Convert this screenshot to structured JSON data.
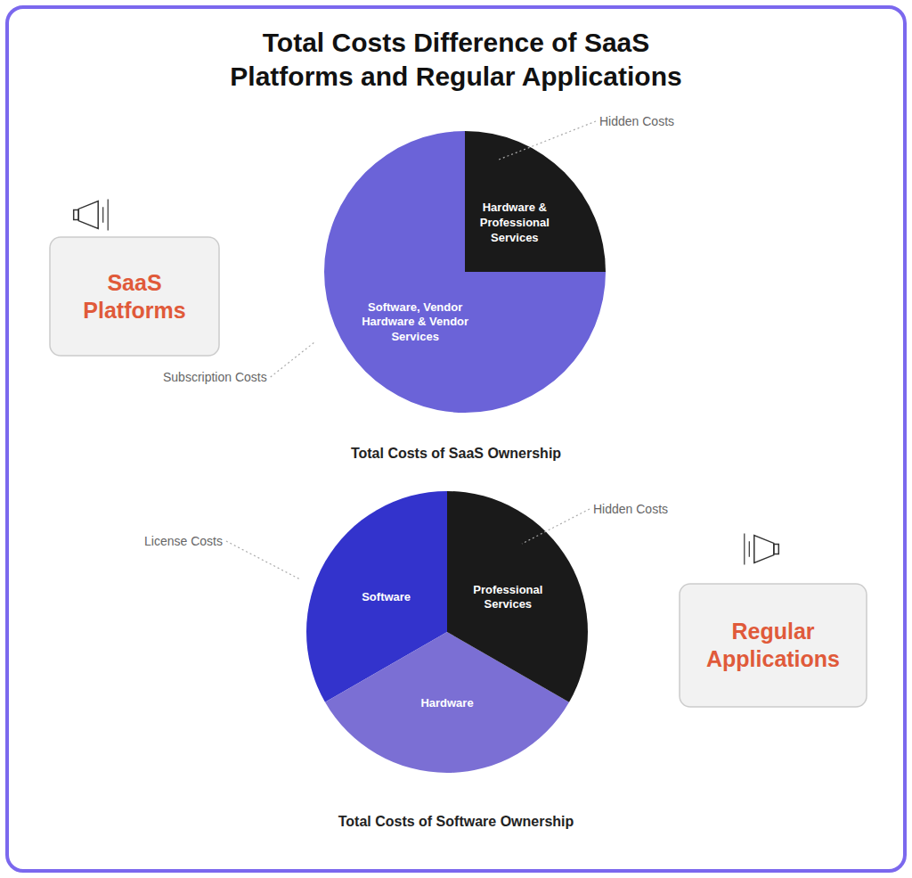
{
  "chart_data": [
    {
      "type": "pie",
      "title": "Total Costs Difference of SaaS\nPlatforms and Regular Applications",
      "subtitle": "Total Costs of SaaS Ownership",
      "categories": [
        "Software, Vendor\nHardware & Vendor\nServices",
        "Hardware &\nProfessional\nServices"
      ],
      "values": [
        75,
        25
      ],
      "colors": [
        "#6B63D8",
        "#1a1a1a"
      ],
      "annotations": [
        "Subscription Costs",
        "Hidden Costs",
        "SaaS\nPlatforms"
      ]
    },
    {
      "type": "pie",
      "subtitle": "Total Costs of Software Ownership",
      "categories": [
        "Software",
        "Hardware",
        "Professional\nServices"
      ],
      "values": [
        33.3,
        33.4,
        33.3
      ],
      "colors": [
        "#3333CC",
        "#7B6FD4",
        "#1a1a1a"
      ],
      "annotations": [
        "License Costs",
        "Hidden Costs",
        "Regular\nApplications"
      ]
    }
  ]
}
